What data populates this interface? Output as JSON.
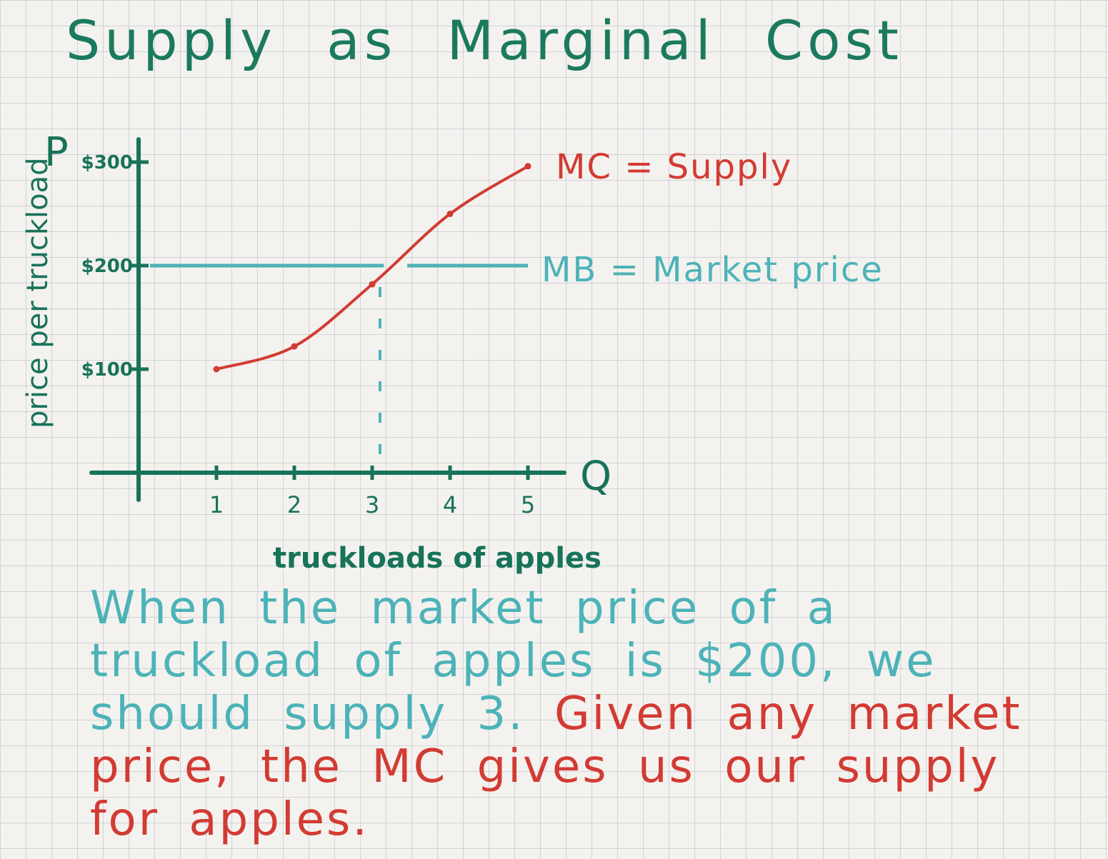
{
  "title": "Supply as Marginal Cost",
  "chart_data": {
    "type": "line",
    "ylabel": "price per truckload",
    "y_axis_symbol": "P",
    "x_axis_symbol": "Q",
    "xlabel": "truckloads of apples",
    "x_ticks": [
      "1",
      "2",
      "3",
      "4",
      "5"
    ],
    "y_ticks": [
      {
        "value": 100,
        "label": "$100"
      },
      {
        "value": 200,
        "label": "$200"
      },
      {
        "value": 300,
        "label": "$300"
      }
    ],
    "xlim": [
      0,
      5.5
    ],
    "ylim": [
      0,
      320
    ],
    "series": [
      {
        "name": "MC = Supply",
        "color": "#d23b33",
        "x": [
          1,
          2,
          3,
          4,
          5
        ],
        "y": [
          100,
          122,
          182,
          250,
          296
        ]
      },
      {
        "name": "MB = Market price",
        "color": "#4cb3b8",
        "x": [
          0,
          5
        ],
        "y": [
          200,
          200
        ]
      }
    ],
    "annotations": [
      {
        "type": "dashed-vline",
        "x": 3.1,
        "from_y": 0,
        "to_y": 200
      }
    ]
  },
  "note": {
    "teal_text": "When the market price of a truckload of apples is $200, we should supply 3.",
    "red_text": "Given any market price, the MC gives us our supply for apples."
  }
}
